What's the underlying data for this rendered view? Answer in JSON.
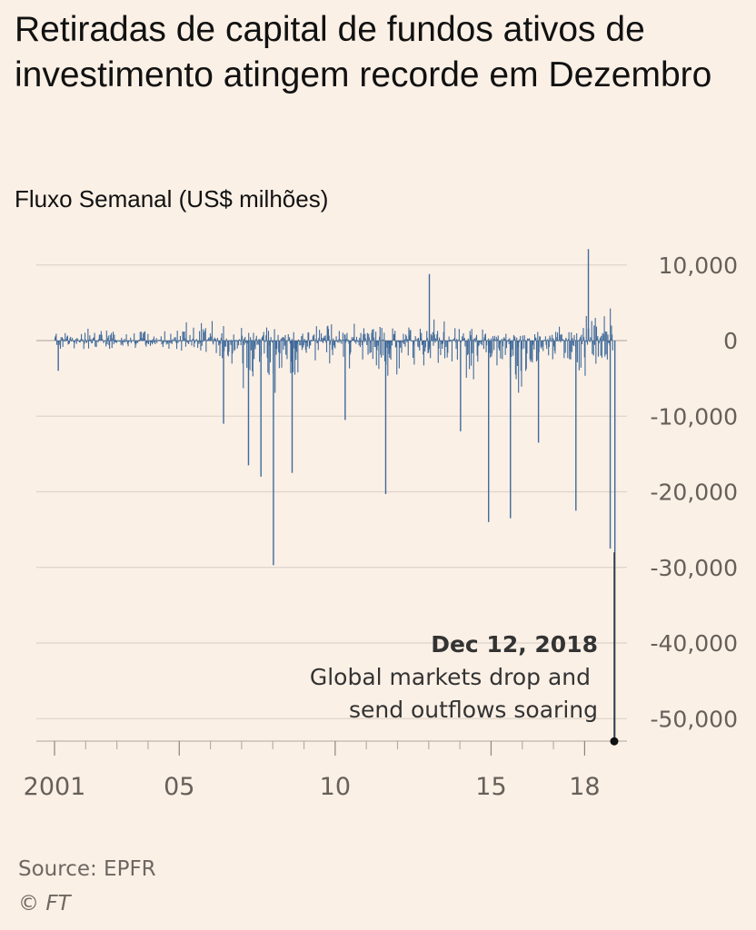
{
  "chart_data": {
    "type": "bar",
    "title": "Retiradas de capital de fundos ativos de investimento atingem recorde em Dezembro",
    "subtitle": "Fluxo Semanal (US$ milhões)",
    "xlabel": "",
    "ylabel": "",
    "xlim": [
      2001,
      2018.95
    ],
    "ylim": [
      -52500,
      12000
    ],
    "y_ticks": [
      10000,
      0,
      -10000,
      -20000,
      -30000,
      -40000,
      -50000
    ],
    "y_tick_labels": [
      "10,000",
      "0",
      "-10,000",
      "-20,000",
      "-30,000",
      "-40,000",
      "-50,000"
    ],
    "x_ticks": [
      2001,
      2005,
      2010,
      2015,
      2018
    ],
    "x_tick_labels": [
      "2001",
      "05",
      "10",
      "15",
      "18"
    ],
    "grid": "horizontal",
    "bar_color": "#3f6a9a",
    "notable_flows": [
      {
        "x": 2001.1,
        "value": -4000
      },
      {
        "x": 2006.4,
        "value": -11000
      },
      {
        "x": 2007.2,
        "value": -16500
      },
      {
        "x": 2007.6,
        "value": -18000
      },
      {
        "x": 2008.0,
        "value": -29700
      },
      {
        "x": 2008.6,
        "value": -17500
      },
      {
        "x": 2010.3,
        "value": -10500
      },
      {
        "x": 2011.6,
        "value": -20300
      },
      {
        "x": 2013.0,
        "value": 8800
      },
      {
        "x": 2014.0,
        "value": -12000
      },
      {
        "x": 2014.9,
        "value": -24000
      },
      {
        "x": 2015.6,
        "value": -23500
      },
      {
        "x": 2016.5,
        "value": -13500
      },
      {
        "x": 2017.7,
        "value": -22500
      },
      {
        "x": 2018.1,
        "value": 12100
      },
      {
        "x": 2018.8,
        "value": -27500
      },
      {
        "x": 2018.95,
        "value": -53000
      }
    ],
    "annotation": {
      "date": "Dec 12, 2018",
      "text_line1": "Global markets drop and",
      "text_line2": "send outflows soaring",
      "x": 2018.95,
      "value": -53000
    }
  },
  "source": "Source: EPFR",
  "copyright_symbol": "©",
  "copyright_name": "FT"
}
